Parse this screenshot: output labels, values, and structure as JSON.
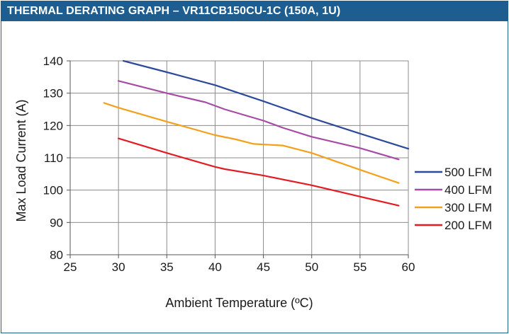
{
  "header": {
    "title": "THERMAL DERATING GRAPH – VR11CB150CU-1C (150A, 1U)"
  },
  "chart_data": {
    "type": "line",
    "title": "THERMAL DERATING GRAPH – VR11CB150CU-1C (150A, 1U)",
    "xlabel": "Ambient Temperature (ºC)",
    "ylabel": "Max Load Current (A)",
    "xlim": [
      25,
      60
    ],
    "ylim": [
      80,
      140
    ],
    "xticks": [
      25,
      30,
      35,
      40,
      45,
      50,
      55,
      60
    ],
    "yticks": [
      80,
      90,
      100,
      110,
      120,
      130,
      140
    ],
    "grid": true,
    "legend_position": "right",
    "series": [
      {
        "name": "500 LFM",
        "color": "#2b4a9a",
        "points": [
          [
            30.5,
            140
          ],
          [
            35,
            136.5
          ],
          [
            40,
            132.5
          ],
          [
            45,
            127.5
          ],
          [
            50,
            122.3
          ],
          [
            55,
            117.5
          ],
          [
            60,
            112.8
          ]
        ]
      },
      {
        "name": "400 LFM",
        "color": "#a64ca6",
        "points": [
          [
            30,
            133.8
          ],
          [
            35,
            130
          ],
          [
            39,
            127.2
          ],
          [
            41,
            125
          ],
          [
            45,
            121.5
          ],
          [
            47,
            119.3
          ],
          [
            50,
            116.5
          ],
          [
            55,
            113
          ],
          [
            59,
            109.5
          ]
        ]
      },
      {
        "name": "300 LFM",
        "color": "#f5a01a",
        "points": [
          [
            28.5,
            127
          ],
          [
            30,
            125.5
          ],
          [
            35,
            121.2
          ],
          [
            40,
            117
          ],
          [
            42,
            115.8
          ],
          [
            44,
            114.3
          ],
          [
            47,
            113.8
          ],
          [
            50,
            111.5
          ],
          [
            55,
            106.3
          ],
          [
            59,
            102.2
          ]
        ]
      },
      {
        "name": "200 LFM",
        "color": "#e31b23",
        "points": [
          [
            30,
            116
          ],
          [
            35,
            111.5
          ],
          [
            40,
            107.2
          ],
          [
            41,
            106.5
          ],
          [
            45,
            104.5
          ],
          [
            50,
            101.5
          ],
          [
            55,
            98
          ],
          [
            59,
            95.2
          ]
        ]
      }
    ]
  }
}
